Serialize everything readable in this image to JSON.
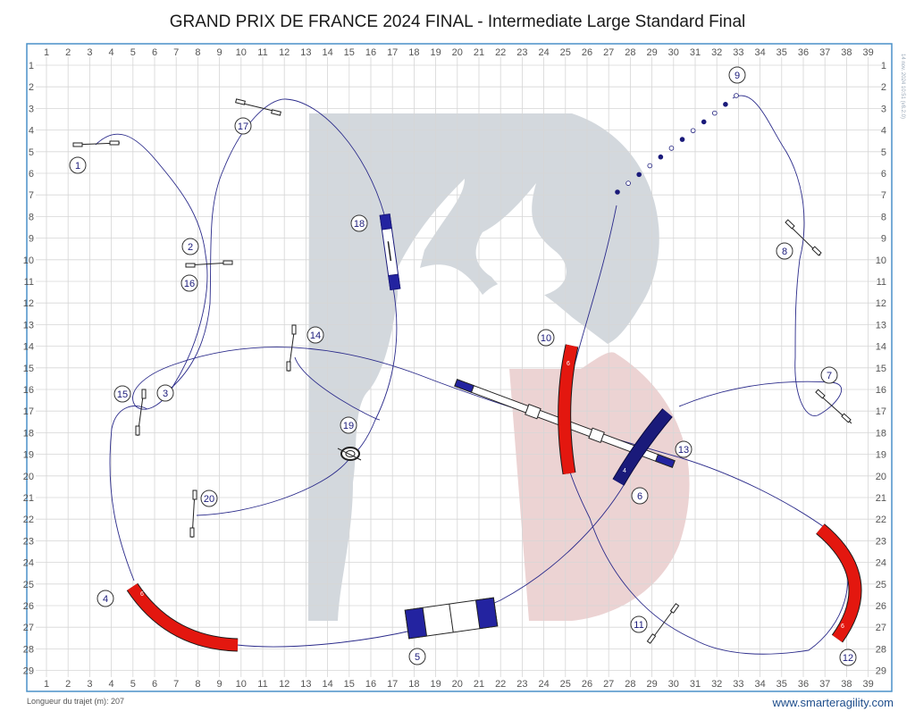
{
  "title": "GRAND PRIX DE FRANCE 2024 FINAL - Intermediate Large Standard Final",
  "grid": {
    "columns": [
      "1",
      "2",
      "3",
      "4",
      "5",
      "6",
      "7",
      "8",
      "9",
      "10",
      "11",
      "12",
      "13",
      "14",
      "15",
      "16",
      "17",
      "18",
      "19",
      "20",
      "21",
      "22",
      "23",
      "24",
      "25",
      "26",
      "27",
      "28",
      "29",
      "30",
      "31",
      "32",
      "33",
      "34",
      "35",
      "36",
      "37",
      "38",
      "39"
    ],
    "rows": [
      "1",
      "2",
      "3",
      "4",
      "5",
      "6",
      "7",
      "8",
      "9",
      "10",
      "11",
      "12",
      "13",
      "14",
      "15",
      "16",
      "17",
      "18",
      "19",
      "20",
      "21",
      "22",
      "23",
      "24",
      "25",
      "26",
      "27",
      "28",
      "29"
    ]
  },
  "colors": {
    "border": "#4a90c8",
    "grid": "#d6d6d6",
    "path": "#2a2a8a",
    "tunnel": "#e3170f",
    "blue": "#1a1a7a",
    "logo_gray": "#d3d8dd",
    "logo_pink": "#ecd3d3"
  },
  "obstacles": [
    {
      "n": "1",
      "kind": "jump"
    },
    {
      "n": "2",
      "kind": "jump"
    },
    {
      "n": "3",
      "kind": "jump"
    },
    {
      "n": "4",
      "kind": "tunnel",
      "label": "6"
    },
    {
      "n": "5",
      "kind": "a-frame"
    },
    {
      "n": "6",
      "kind": "tunnel",
      "label": "4"
    },
    {
      "n": "7",
      "kind": "jump"
    },
    {
      "n": "8",
      "kind": "jump"
    },
    {
      "n": "9",
      "kind": "weave"
    },
    {
      "n": "10",
      "kind": "tunnel",
      "label": "6"
    },
    {
      "n": "11",
      "kind": "jump"
    },
    {
      "n": "12",
      "kind": "tunnel",
      "label": "6"
    },
    {
      "n": "13",
      "kind": "dog-walk"
    },
    {
      "n": "14",
      "kind": "jump"
    },
    {
      "n": "15",
      "kind": "jump"
    },
    {
      "n": "16",
      "kind": "jump"
    },
    {
      "n": "17",
      "kind": "jump"
    },
    {
      "n": "18",
      "kind": "seesaw"
    },
    {
      "n": "19",
      "kind": "tyre"
    },
    {
      "n": "20",
      "kind": "jump"
    }
  ],
  "footer": {
    "length": "Longueur du trajet (m): 207",
    "url": "www.smarteragility.com",
    "stamp": "14 nov. 2024 10:51 (v8.2.0)"
  }
}
